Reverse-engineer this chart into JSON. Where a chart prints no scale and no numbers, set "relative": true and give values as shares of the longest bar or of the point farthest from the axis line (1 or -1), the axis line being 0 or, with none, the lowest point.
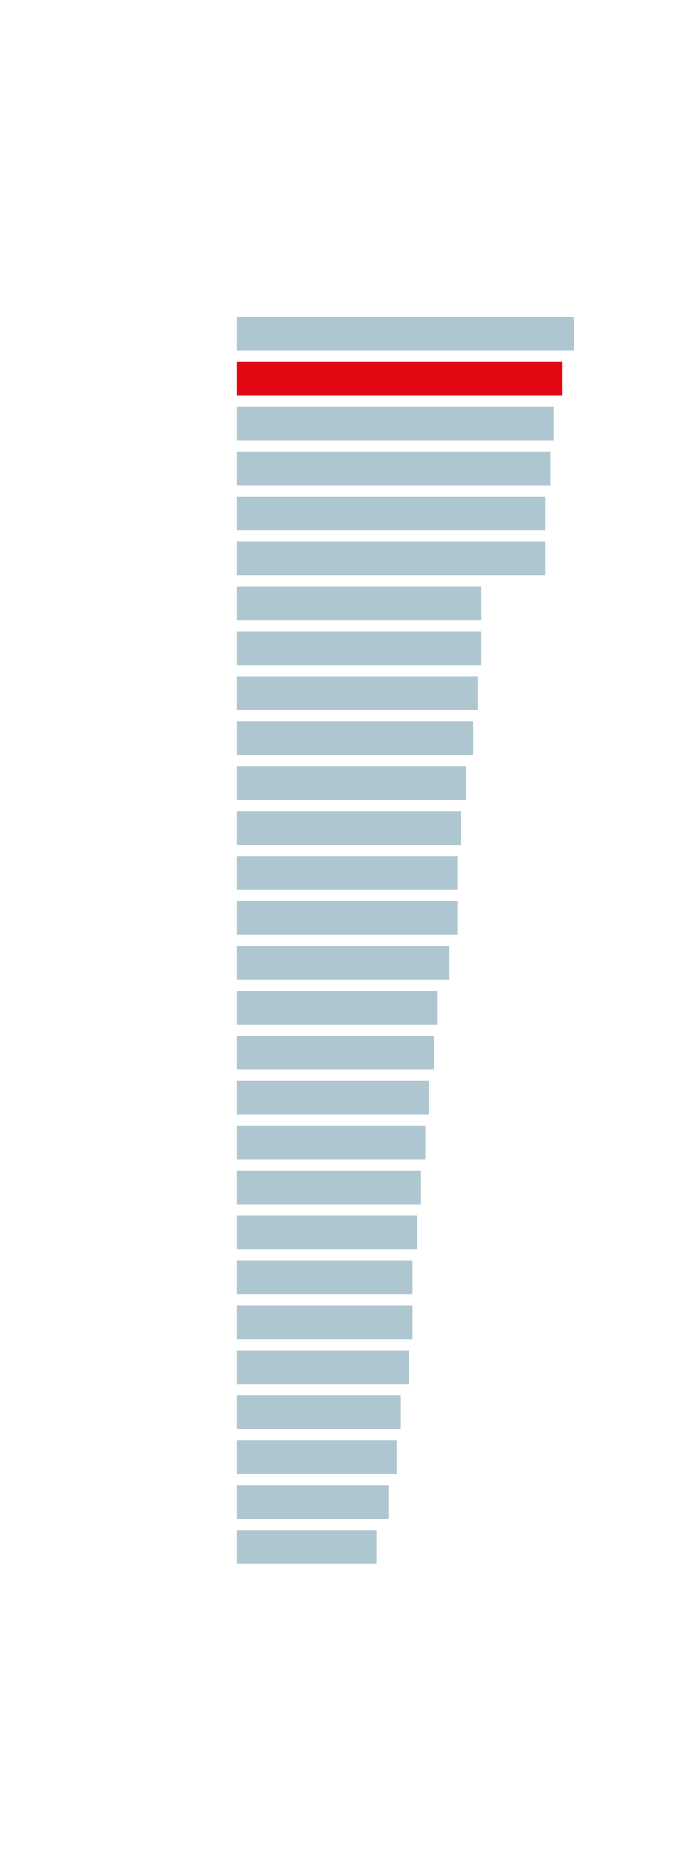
{
  "chart_data": {
    "type": "bar",
    "orientation": "horizontal",
    "relative": true,
    "categories": [
      null,
      null,
      null,
      null,
      null,
      null,
      null,
      null,
      null,
      null,
      null,
      null,
      null,
      null,
      null,
      null,
      null,
      null,
      null,
      null,
      null,
      null,
      null,
      null,
      null,
      null,
      null,
      null
    ],
    "values": [
      1,
      0.965,
      0.94,
      0.93,
      0.915,
      0.915,
      0.725,
      0.725,
      0.715,
      0.701,
      0.68,
      0.665,
      0.655,
      0.655,
      0.63,
      0.595,
      0.585,
      0.57,
      0.56,
      0.546,
      0.535,
      0.521,
      0.521,
      0.511,
      0.486,
      0.475,
      0.451,
      0.415
    ],
    "colors": [
      "#aec6d0",
      "#e30613",
      "#aec6d0",
      "#aec6d0",
      "#aec6d0",
      "#aec6d0",
      "#aec6d0",
      "#aec6d0",
      "#aec6d0",
      "#aec6d0",
      "#aec6d0",
      "#aec6d0",
      "#aec6d0",
      "#aec6d0",
      "#aec6d0",
      "#aec6d0",
      "#aec6d0",
      "#aec6d0",
      "#aec6d0",
      "#aec6d0",
      "#aec6d0",
      "#aec6d0",
      "#aec6d0",
      "#aec6d0",
      "#aec6d0",
      "#aec6d0",
      "#aec6d0",
      "#aec6d0"
    ]
  }
}
